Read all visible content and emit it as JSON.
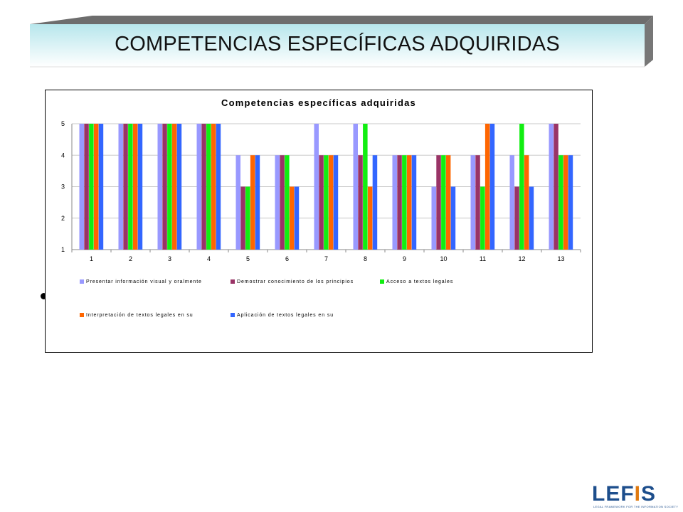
{
  "slide": {
    "title": "COMPETENCIAS ESPECÍFICAS ADQUIRIDAS",
    "logo_text": "LEFIS",
    "logo_subtitle": "LEGAL FRAMEWORK FOR THE INFORMATION SOCIETY"
  },
  "chart_data": {
    "type": "bar",
    "title": "Competencias específicas adquiridas",
    "xlabel": "",
    "ylabel": "",
    "ylim": [
      1,
      5
    ],
    "yticks": [
      1,
      2,
      3,
      4,
      5
    ],
    "grid": true,
    "legend_position": "bottom",
    "categories": [
      "1",
      "2",
      "3",
      "4",
      "5",
      "6",
      "7",
      "8",
      "9",
      "10",
      "11",
      "12",
      "13"
    ],
    "series": [
      {
        "name": "Presentar información visual y oralmente",
        "color": "#9999ff",
        "values": [
          5,
          5,
          5,
          5,
          4,
          4,
          5,
          5,
          4,
          3,
          4,
          4,
          5
        ]
      },
      {
        "name": "Demostrar conocimiento de los principios",
        "color": "#993366",
        "values": [
          5,
          5,
          5,
          5,
          3,
          4,
          4,
          4,
          4,
          4,
          4,
          3,
          5
        ]
      },
      {
        "name": "Acceso a textos legales",
        "color": "#11ee11",
        "values": [
          5,
          5,
          5,
          5,
          3,
          4,
          4,
          5,
          4,
          4,
          3,
          5,
          4
        ]
      },
      {
        "name": "Interpretación de textos legales en su",
        "color": "#ff6600",
        "values": [
          5,
          5,
          5,
          5,
          4,
          3,
          4,
          3,
          4,
          4,
          5,
          4,
          4
        ]
      },
      {
        "name": "Aplicación de textos legales en su",
        "color": "#3366ff",
        "values": [
          5,
          5,
          5,
          5,
          4,
          3,
          4,
          4,
          4,
          3,
          5,
          3,
          4
        ]
      }
    ]
  }
}
